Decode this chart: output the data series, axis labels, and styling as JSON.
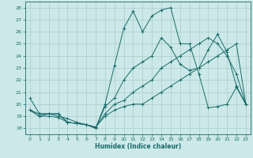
{
  "title": "",
  "xlabel": "Humidex (Indice chaleur)",
  "ylabel": "",
  "xlim": [
    -0.5,
    23.5
  ],
  "ylim": [
    17.5,
    28.5
  ],
  "yticks": [
    18,
    19,
    20,
    21,
    22,
    23,
    24,
    25,
    26,
    27,
    28
  ],
  "xticks": [
    0,
    1,
    2,
    3,
    4,
    5,
    6,
    7,
    8,
    9,
    10,
    11,
    12,
    13,
    14,
    15,
    16,
    17,
    18,
    19,
    20,
    21,
    22,
    23
  ],
  "background_color": "#cce8e8",
  "grid_color": "#aacccc",
  "line_color": "#1a6b6b",
  "lines": [
    {
      "x": [
        0,
        1,
        2,
        3,
        4,
        5,
        6,
        7,
        8,
        9,
        10,
        11,
        12,
        13,
        14,
        15,
        16,
        17,
        18,
        19,
        20,
        21,
        22,
        23
      ],
      "y": [
        20.5,
        19.2,
        19.2,
        19.2,
        18.5,
        18.4,
        18.3,
        18.0,
        20.0,
        23.2,
        26.3,
        27.7,
        26.0,
        27.3,
        27.8,
        28.0,
        25.0,
        25.0,
        22.5,
        19.7,
        19.8,
        20.0,
        21.4,
        20.0
      ]
    },
    {
      "x": [
        0,
        1,
        2,
        3,
        4,
        5,
        6,
        7,
        8,
        9,
        10,
        11,
        12,
        13,
        14,
        15,
        16,
        17,
        18,
        19,
        20,
        21,
        22,
        23
      ],
      "y": [
        19.5,
        19.2,
        19.2,
        19.2,
        18.5,
        18.4,
        18.3,
        18.0,
        19.8,
        20.5,
        22.0,
        23.0,
        23.5,
        24.0,
        25.5,
        24.7,
        23.3,
        22.8,
        23.0,
        24.5,
        25.8,
        24.3,
        21.5,
        20.0
      ]
    },
    {
      "x": [
        0,
        1,
        2,
        3,
        4,
        5,
        6,
        7,
        8,
        9,
        10,
        11,
        12,
        13,
        14,
        15,
        16,
        17,
        18,
        19,
        20,
        21,
        22,
        23
      ],
      "y": [
        19.5,
        19.0,
        19.2,
        19.0,
        18.8,
        18.5,
        18.3,
        18.1,
        19.2,
        20.0,
        20.3,
        21.0,
        21.5,
        22.0,
        23.0,
        23.5,
        24.0,
        24.5,
        25.0,
        25.5,
        25.0,
        24.0,
        22.5,
        20.0
      ]
    },
    {
      "x": [
        0,
        1,
        2,
        3,
        4,
        5,
        6,
        7,
        8,
        9,
        10,
        11,
        12,
        13,
        14,
        15,
        16,
        17,
        18,
        19,
        20,
        21,
        22,
        23
      ],
      "y": [
        19.5,
        19.0,
        19.0,
        18.9,
        18.5,
        18.4,
        18.3,
        18.1,
        19.0,
        19.5,
        19.8,
        20.0,
        20.0,
        20.5,
        21.0,
        21.5,
        22.0,
        22.5,
        23.0,
        23.5,
        24.0,
        24.5,
        25.0,
        20.0
      ]
    }
  ]
}
